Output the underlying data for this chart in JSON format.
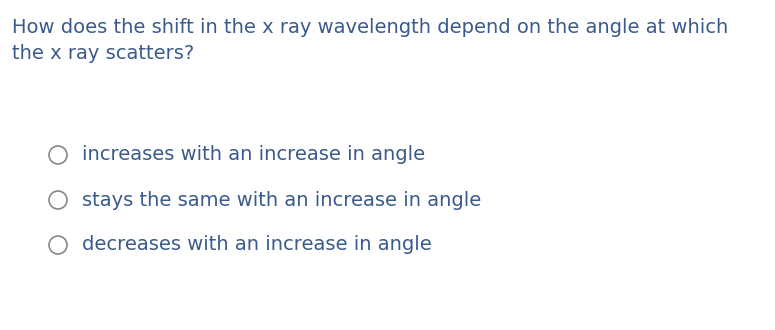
{
  "background_color": "#ffffff",
  "question_line1": "How does the shift in the x ray wavelength depend on the angle at which",
  "question_line2": "the x ray scatters?",
  "question_color": "#3a5a8c",
  "question_fontsize": 14,
  "options": [
    "increases with an increase in angle",
    "stays the same with an increase in angle",
    "decreases with an increase in angle"
  ],
  "option_color": "#3a5a8c",
  "option_fontsize": 14,
  "circle_color": "#888888",
  "circle_linewidth": 1.2,
  "fig_width": 7.75,
  "fig_height": 3.3,
  "dpi": 100
}
